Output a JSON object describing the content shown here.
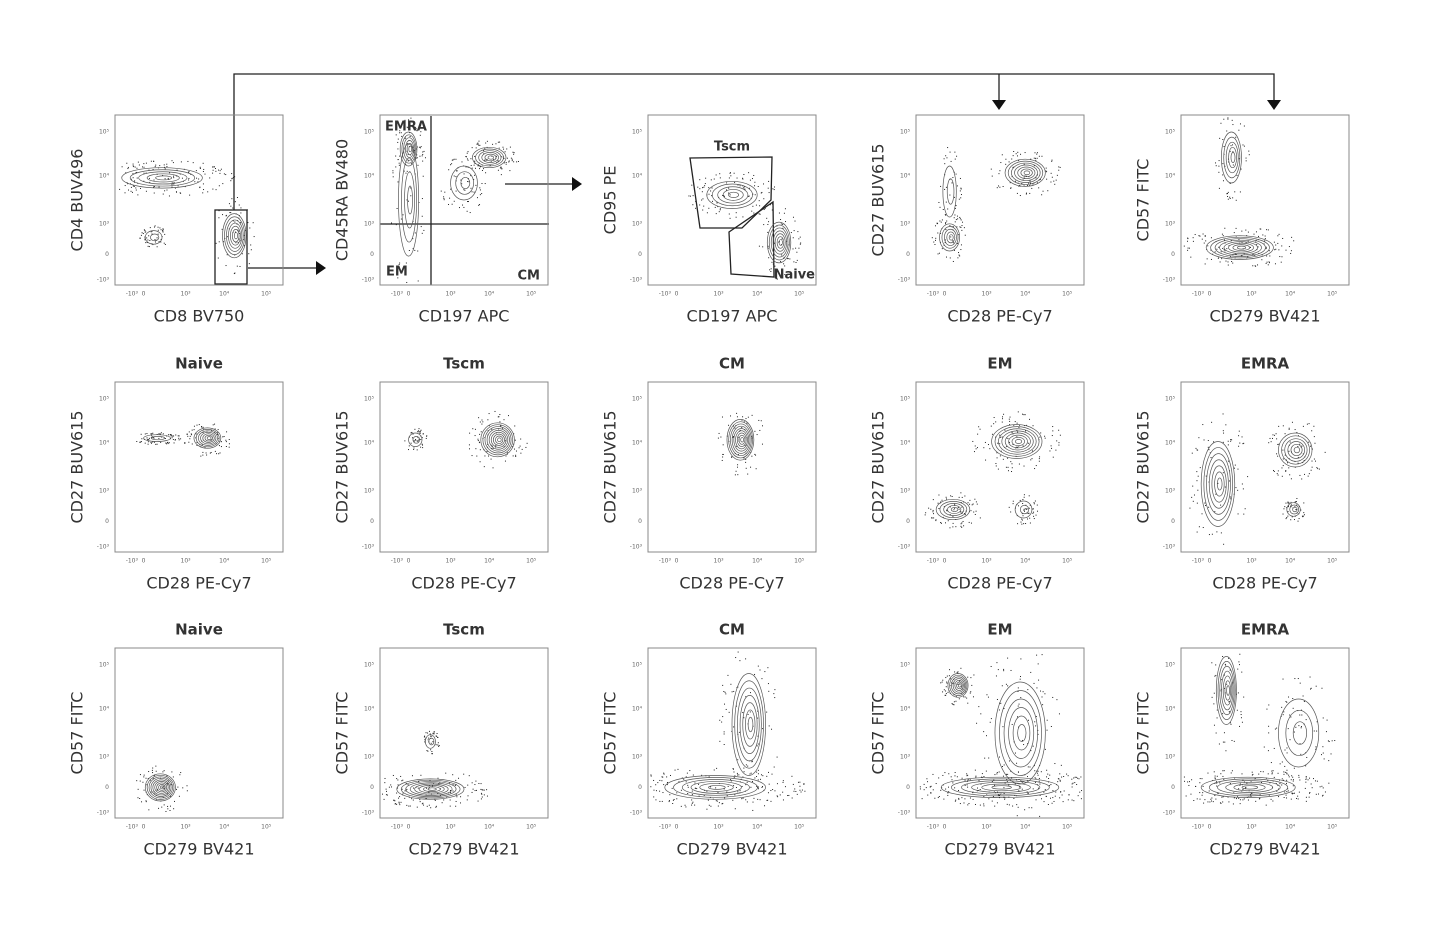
{
  "tick_labels": [
    "-10³",
    "0",
    "10³",
    "10⁴",
    "10⁵"
  ],
  "rows": [
    {
      "panels": [
        {
          "x_label": "CD8 BV750",
          "y_label": "CD4 BUV496"
        },
        {
          "x_label": "CD197 APC",
          "y_label": "CD45RA BV480",
          "gates": [
            "EMRA",
            "EM",
            "CM"
          ]
        },
        {
          "x_label": "CD197 APC",
          "y_label": "CD95 PE",
          "gates": [
            "Tscm",
            "Naive"
          ]
        },
        {
          "x_label": "CD28 PE-Cy7",
          "y_label": "CD27 BUV615"
        },
        {
          "x_label": "CD279 BV421",
          "y_label": "CD57 FITC"
        }
      ]
    },
    {
      "panels": [
        {
          "title": "Naive",
          "x_label": "CD28 PE-Cy7",
          "y_label": "CD27 BUV615"
        },
        {
          "title": "Tscm",
          "x_label": "CD28 PE-Cy7",
          "y_label": "CD27 BUV615"
        },
        {
          "title": "CM",
          "x_label": "CD28 PE-Cy7",
          "y_label": "CD27 BUV615"
        },
        {
          "title": "EM",
          "x_label": "CD28 PE-Cy7",
          "y_label": "CD27 BUV615"
        },
        {
          "title": "EMRA",
          "x_label": "CD28 PE-Cy7",
          "y_label": "CD27 BUV615"
        }
      ]
    },
    {
      "panels": [
        {
          "title": "Naive",
          "x_label": "CD279 BV421",
          "y_label": "CD57 FITC"
        },
        {
          "title": "Tscm",
          "x_label": "CD279 BV421",
          "y_label": "CD57 FITC"
        },
        {
          "title": "CM",
          "x_label": "CD279 BV421",
          "y_label": "CD57 FITC"
        },
        {
          "title": "EM",
          "x_label": "CD279 BV421",
          "y_label": "CD57 FITC"
        },
        {
          "title": "EMRA",
          "x_label": "CD279 BV421",
          "y_label": "CD57 FITC"
        }
      ]
    }
  ]
}
